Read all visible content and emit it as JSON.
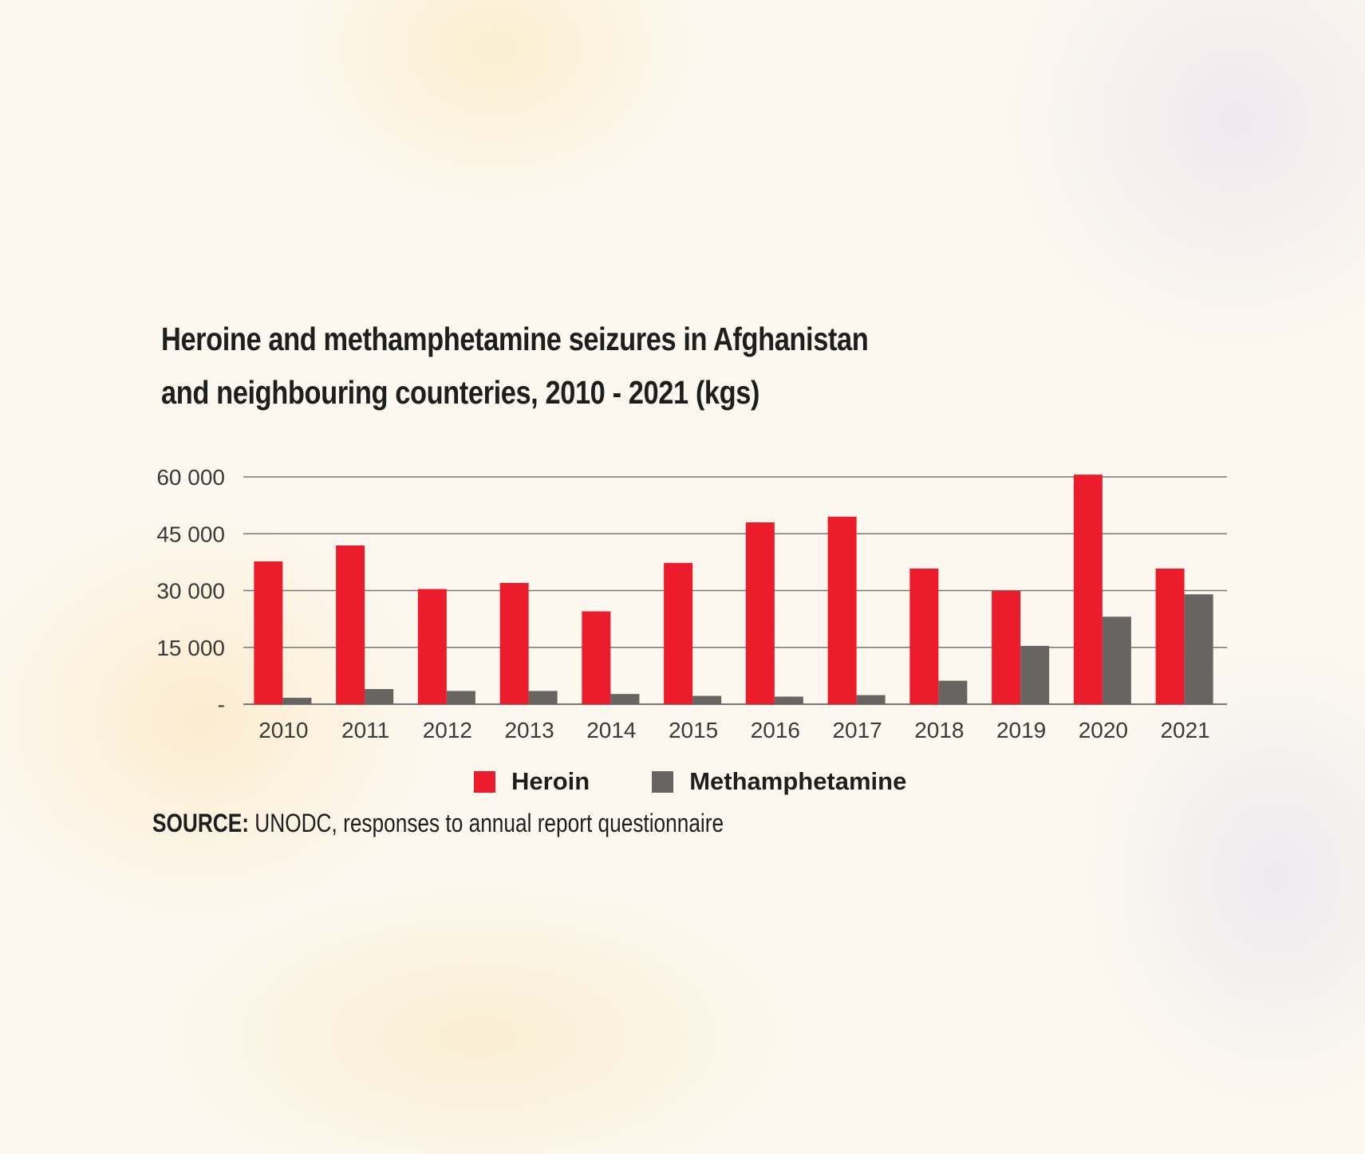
{
  "chart_data": {
    "type": "bar",
    "title_lines": [
      "Heroine and methamphetamine seizures in Afghanistan",
      "and neighbouring counteries, 2010 - 2021 (kgs)"
    ],
    "categories": [
      "2010",
      "2011",
      "2012",
      "2013",
      "2014",
      "2015",
      "2016",
      "2017",
      "2018",
      "2019",
      "2020",
      "2021"
    ],
    "series": [
      {
        "name": "Heroin",
        "color": "#ed1c2c",
        "values": [
          37700,
          41900,
          30400,
          32000,
          24500,
          37300,
          48000,
          49500,
          35800,
          29900,
          60600,
          35800
        ]
      },
      {
        "name": "Methamphetamine",
        "color": "#676462",
        "values": [
          1700,
          4000,
          3500,
          3500,
          2700,
          2200,
          2000,
          2400,
          6200,
          15400,
          23100,
          29000
        ]
      }
    ],
    "ylim": [
      0,
      60000
    ],
    "yticks": [
      0,
      15000,
      30000,
      45000,
      60000
    ],
    "ytick_labels": [
      "-",
      "15 000",
      "30 000",
      "45 000",
      "60 000"
    ],
    "grid": true,
    "legend_position": "bottom",
    "source_label": "SOURCE:",
    "source_text": " UNODC, responses to annual report questionnaire"
  }
}
